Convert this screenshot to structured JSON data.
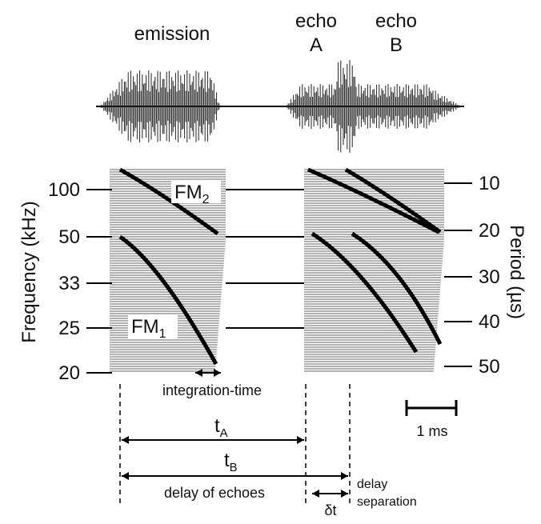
{
  "waveform_labels": {
    "emission": "emission",
    "echo_a": [
      "echo",
      "A"
    ],
    "echo_b": [
      "echo",
      "B"
    ]
  },
  "harmonics": {
    "fm2": {
      "main": "FM",
      "sub": "2"
    },
    "fm1": {
      "main": "FM",
      "sub": "1"
    }
  },
  "left_axis": {
    "title": "Frequency (kHz)",
    "ticks": [
      "100",
      "50",
      "33",
      "25",
      "20"
    ]
  },
  "right_axis": {
    "title": "Period (µs)",
    "ticks": [
      "10",
      "20",
      "30",
      "40",
      "50"
    ]
  },
  "integration_time": "integration-time",
  "scale_bar": "1 ms",
  "delays": {
    "t_a": {
      "main": "t",
      "sub": "A"
    },
    "t_b": {
      "main": "t",
      "sub": "B"
    },
    "delay_of_echoes": "delay of echoes",
    "delta_t": "δt",
    "delay_separation": [
      "delay",
      "separation"
    ]
  }
}
